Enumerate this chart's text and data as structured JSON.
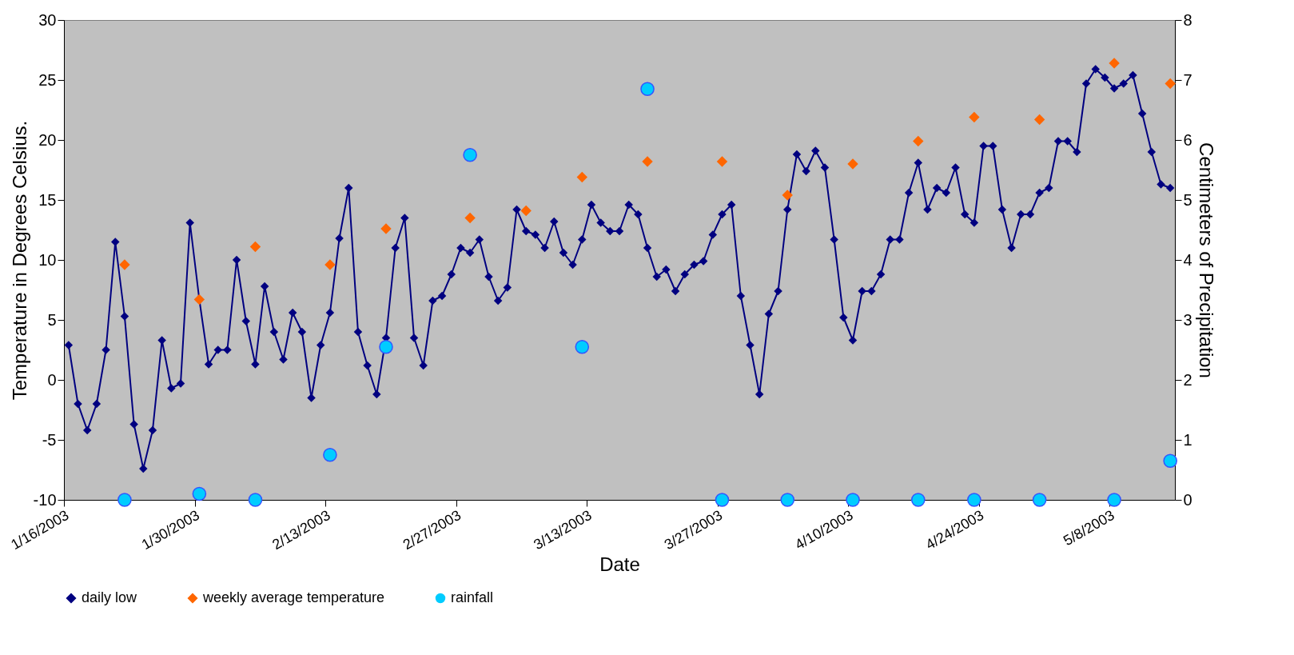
{
  "chart_data": {
    "type": "line",
    "xlabel": "Date",
    "ylabel": "Temperature in Degrees Celsius.",
    "y2label": "Centimeters of Precipitation",
    "xlim": [
      "2003-01-16",
      "2003-05-15"
    ],
    "xticks": [
      {
        "value": "2003-01-16",
        "label": "1/16/2003"
      },
      {
        "value": "2003-01-30",
        "label": "1/30/2003"
      },
      {
        "value": "2003-02-13",
        "label": "2/13/2003"
      },
      {
        "value": "2003-02-27",
        "label": "2/27/2003"
      },
      {
        "value": "2003-03-13",
        "label": "3/13/2003"
      },
      {
        "value": "2003-03-27",
        "label": "3/27/2003"
      },
      {
        "value": "2003-04-10",
        "label": "4/10/2003"
      },
      {
        "value": "2003-04-24",
        "label": "4/24/2003"
      },
      {
        "value": "2003-05-08",
        "label": "5/8/2003"
      }
    ],
    "ylim": [
      -10,
      30
    ],
    "yticks": [
      -10,
      -5,
      0,
      5,
      10,
      15,
      20,
      25,
      30
    ],
    "y2lim": [
      0,
      8
    ],
    "y2ticks": [
      0,
      1,
      2,
      3,
      4,
      5,
      6,
      7,
      8
    ],
    "grid": false,
    "legend": "bottom",
    "series": [
      {
        "name": "daily low",
        "marker": "diamond",
        "line_style": "solid",
        "color": "#000080",
        "x": [
          "2003-01-16T12:00",
          "2003-01-17T12:00",
          "2003-01-18T12:00",
          "2003-01-19T12:00",
          "2003-01-20T12:00",
          "2003-01-21T12:00",
          "2003-01-22T12:00",
          "2003-01-23T12:00",
          "2003-01-24T12:00",
          "2003-01-25T12:00",
          "2003-01-26T12:00",
          "2003-01-27T12:00",
          "2003-01-28T12:00",
          "2003-01-29T12:00",
          "2003-01-30T12:00",
          "2003-01-31T12:00",
          "2003-02-01T12:00",
          "2003-02-02T12:00",
          "2003-02-03T12:00",
          "2003-02-04T12:00",
          "2003-02-05T12:00",
          "2003-02-06T12:00",
          "2003-02-07T12:00",
          "2003-02-08T12:00",
          "2003-02-09T12:00",
          "2003-02-10T12:00",
          "2003-02-11T12:00",
          "2003-02-12T12:00",
          "2003-02-13T12:00",
          "2003-02-14T12:00",
          "2003-02-15T12:00",
          "2003-02-16T12:00",
          "2003-02-17T12:00",
          "2003-02-18T12:00",
          "2003-02-19T12:00",
          "2003-02-20T12:00",
          "2003-02-21T12:00",
          "2003-02-22T12:00",
          "2003-02-23T12:00",
          "2003-02-24T12:00",
          "2003-02-25T12:00",
          "2003-02-26T12:00",
          "2003-02-27T12:00",
          "2003-02-28T12:00",
          "2003-03-01T12:00",
          "2003-03-02T12:00",
          "2003-03-03T12:00",
          "2003-03-04T12:00",
          "2003-03-05T12:00",
          "2003-03-06T12:00",
          "2003-03-07T12:00",
          "2003-03-08T12:00",
          "2003-03-09T12:00",
          "2003-03-10T12:00",
          "2003-03-11T12:00",
          "2003-03-12T12:00",
          "2003-03-13T12:00",
          "2003-03-14T12:00",
          "2003-03-15T12:00",
          "2003-03-16T12:00",
          "2003-03-17T12:00",
          "2003-03-18T12:00",
          "2003-03-19T12:00",
          "2003-03-20T12:00",
          "2003-03-21T12:00",
          "2003-03-22T12:00",
          "2003-03-23T12:00",
          "2003-03-24T12:00",
          "2003-03-25T12:00",
          "2003-03-26T12:00",
          "2003-03-27T12:00",
          "2003-03-28T12:00",
          "2003-03-29T12:00",
          "2003-03-30T12:00",
          "2003-03-31T12:00",
          "2003-04-01T12:00",
          "2003-04-02T12:00",
          "2003-04-03T12:00",
          "2003-04-04T12:00",
          "2003-04-05T12:00",
          "2003-04-06T12:00",
          "2003-04-07T12:00",
          "2003-04-08T12:00",
          "2003-04-09T12:00",
          "2003-04-10T12:00",
          "2003-04-11T12:00",
          "2003-04-12T12:00",
          "2003-04-13T12:00",
          "2003-04-14T12:00",
          "2003-04-15T12:00",
          "2003-04-16T12:00",
          "2003-04-17T12:00",
          "2003-04-18T12:00",
          "2003-04-19T12:00",
          "2003-04-20T12:00",
          "2003-04-21T12:00",
          "2003-04-22T12:00",
          "2003-04-23T12:00",
          "2003-04-24T12:00",
          "2003-04-25T12:00",
          "2003-04-26T12:00",
          "2003-04-27T12:00",
          "2003-04-28T12:00",
          "2003-04-29T12:00",
          "2003-04-30T12:00",
          "2003-05-01T12:00",
          "2003-05-02T12:00",
          "2003-05-03T12:00",
          "2003-05-04T12:00",
          "2003-05-05T12:00",
          "2003-05-06T12:00",
          "2003-05-07T12:00",
          "2003-05-08T12:00",
          "2003-05-09T12:00",
          "2003-05-10T12:00",
          "2003-05-11T12:00",
          "2003-05-12T12:00",
          "2003-05-13T12:00",
          "2003-05-14T12:00"
        ],
        "values": [
          2.9,
          -2.0,
          -4.2,
          -2.0,
          2.5,
          11.5,
          5.3,
          -3.7,
          -7.4,
          -4.2,
          3.3,
          -0.7,
          -0.3,
          13.1,
          6.7,
          1.3,
          2.5,
          2.5,
          10.0,
          4.9,
          1.3,
          7.8,
          4.0,
          1.7,
          5.6,
          4.0,
          -1.5,
          2.9,
          5.6,
          11.8,
          16.0,
          4.0,
          1.2,
          -1.2,
          3.5,
          11.0,
          13.5,
          3.5,
          1.2,
          6.6,
          7.0,
          8.8,
          11.0,
          10.6,
          11.7,
          8.6,
          6.6,
          7.7,
          14.2,
          12.4,
          12.1,
          11.0,
          13.2,
          10.6,
          9.6,
          11.7,
          14.6,
          13.1,
          12.4,
          12.4,
          14.6,
          13.8,
          11.0,
          8.6,
          9.2,
          7.4,
          8.8,
          9.6,
          9.9,
          12.1,
          13.8,
          14.6,
          7.0,
          2.9,
          -1.2,
          5.5,
          7.4,
          14.2,
          18.8,
          17.4,
          19.1,
          17.7,
          11.7,
          5.2,
          3.3,
          7.4,
          7.4,
          8.8,
          11.7,
          11.7,
          15.6,
          18.1,
          14.2,
          16.0,
          15.6,
          17.7,
          13.8,
          13.1,
          19.5,
          19.5,
          14.2,
          11.0,
          13.8,
          13.8,
          15.6,
          16.0,
          19.9,
          19.9,
          19.0,
          24.7,
          25.9,
          25.2,
          24.3,
          24.7,
          25.4,
          22.2,
          19.0,
          16.3,
          16.0
        ]
      },
      {
        "name": "weekly average temperature",
        "type": "scatter",
        "marker": "diamond",
        "color": "#ff6600",
        "x": [
          "2003-01-22T12:00",
          "2003-01-30T12:00",
          "2003-02-05T12:00",
          "2003-02-13T12:00",
          "2003-02-19T12:00",
          "2003-02-28T12:00",
          "2003-03-06T12:00",
          "2003-03-12T12:00",
          "2003-03-19T12:00",
          "2003-03-27T12:00",
          "2003-04-03T12:00",
          "2003-04-10T12:00",
          "2003-04-17T12:00",
          "2003-04-23T12:00",
          "2003-04-30T12:00",
          "2003-05-08T12:00",
          "2003-05-14T12:00"
        ],
        "values": [
          9.6,
          6.7,
          11.1,
          9.6,
          12.6,
          13.5,
          14.1,
          16.9,
          18.2,
          18.2,
          15.4,
          18.0,
          19.9,
          21.9,
          21.7,
          26.4,
          24.7
        ]
      },
      {
        "name": "rainfall",
        "type": "scatter",
        "marker": "circle",
        "axis": "y2",
        "color": "#00ccff",
        "x": [
          "2003-01-22T12:00",
          "2003-01-30T12:00",
          "2003-02-05T12:00",
          "2003-02-13T12:00",
          "2003-02-19T12:00",
          "2003-02-28T12:00",
          "2003-03-12T12:00",
          "2003-03-19T12:00",
          "2003-03-27T12:00",
          "2003-04-03T12:00",
          "2003-04-10T12:00",
          "2003-04-17T12:00",
          "2003-04-23T12:00",
          "2003-04-30T12:00",
          "2003-05-08T12:00",
          "2003-05-14T12:00"
        ],
        "values": [
          0,
          0.1,
          0,
          0.75,
          2.55,
          5.75,
          2.55,
          6.85,
          0,
          0,
          0,
          0,
          0,
          0,
          0,
          0.65
        ]
      }
    ]
  }
}
